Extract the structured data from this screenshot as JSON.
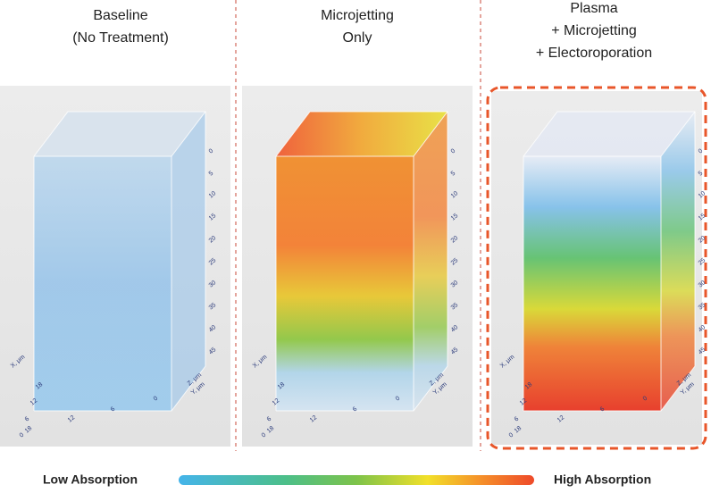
{
  "panels": [
    {
      "title_lines": [
        "Baseline",
        "(No Treatment)"
      ]
    },
    {
      "title_lines": [
        "Microjetting",
        "Only"
      ]
    },
    {
      "title_lines": [
        "Plasma",
        "+ Microjetting",
        "+ Electoroporation"
      ]
    }
  ],
  "axes": {
    "x_label": "X, μm",
    "y_label": "Y, μm",
    "z_label": "Z, μm",
    "z_ticks": [
      "0",
      "5",
      "10",
      "15",
      "20",
      "25",
      "30",
      "35",
      "40",
      "45"
    ],
    "x_ticks": [
      "0",
      "6",
      "12",
      "18"
    ],
    "y_ticks": [
      "18",
      "12",
      "6",
      "0"
    ]
  },
  "legend": {
    "low": "Low Absorption",
    "high": "High Absorption"
  }
}
